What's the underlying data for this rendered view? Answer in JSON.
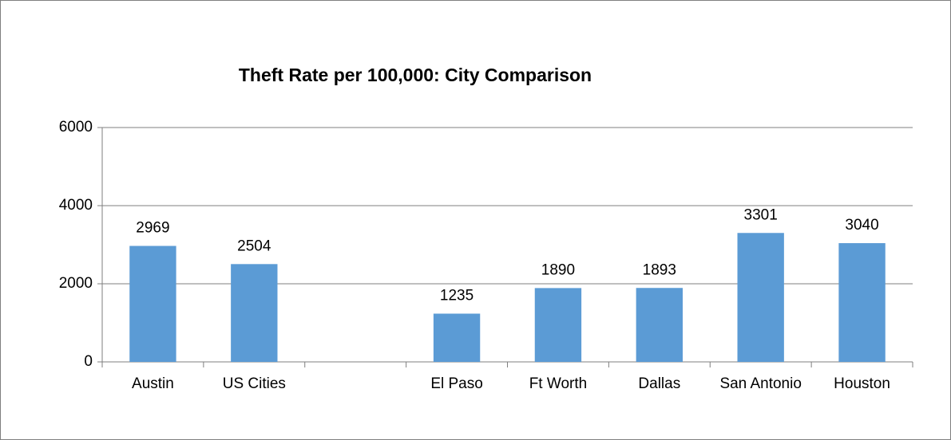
{
  "chart_data": {
    "type": "bar",
    "title": "Theft Rate per 100,000: City Comparison",
    "categories": [
      "Austin",
      "US Cities",
      null,
      "El Paso",
      "Ft Worth",
      "Dallas",
      "San Antonio",
      "Houston"
    ],
    "values": [
      2969,
      2504,
      null,
      1235,
      1890,
      1893,
      3301,
      3040
    ],
    "color": "#5b9bd5",
    "ylim": [
      0,
      6000
    ],
    "yticks": [
      0,
      2000,
      4000,
      6000
    ],
    "grid": true
  }
}
